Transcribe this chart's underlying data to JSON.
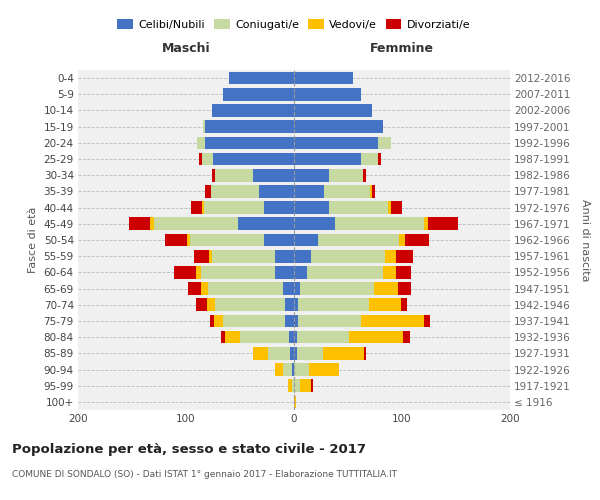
{
  "age_groups": [
    "100+",
    "95-99",
    "90-94",
    "85-89",
    "80-84",
    "75-79",
    "70-74",
    "65-69",
    "60-64",
    "55-59",
    "50-54",
    "45-49",
    "40-44",
    "35-39",
    "30-34",
    "25-29",
    "20-24",
    "15-19",
    "10-14",
    "5-9",
    "0-4"
  ],
  "birth_years": [
    "≤ 1916",
    "1917-1921",
    "1922-1926",
    "1927-1931",
    "1932-1936",
    "1937-1941",
    "1942-1946",
    "1947-1951",
    "1952-1956",
    "1957-1961",
    "1962-1966",
    "1967-1971",
    "1972-1976",
    "1977-1981",
    "1982-1986",
    "1987-1991",
    "1992-1996",
    "1997-2001",
    "2002-2006",
    "2007-2011",
    "2012-2016"
  ],
  "colors": {
    "celibi": "#4472c4",
    "coniugati": "#c5d9a0",
    "vedovi": "#ffc000",
    "divorziati": "#cc0000"
  },
  "male_celibi": [
    0,
    0,
    2,
    4,
    5,
    8,
    8,
    10,
    18,
    18,
    28,
    52,
    28,
    32,
    38,
    75,
    82,
    82,
    76,
    66,
    60
  ],
  "male_coniugati": [
    0,
    2,
    8,
    20,
    45,
    58,
    65,
    70,
    68,
    58,
    68,
    78,
    55,
    45,
    35,
    10,
    8,
    2,
    0,
    0,
    0
  ],
  "male_vedovi": [
    0,
    4,
    8,
    14,
    14,
    8,
    8,
    6,
    5,
    3,
    3,
    3,
    2,
    0,
    0,
    0,
    0,
    0,
    0,
    0,
    0
  ],
  "male_divorziati": [
    0,
    0,
    0,
    0,
    4,
    4,
    10,
    12,
    20,
    14,
    20,
    20,
    10,
    5,
    3,
    3,
    0,
    0,
    0,
    0,
    0
  ],
  "female_celibi": [
    0,
    0,
    0,
    3,
    3,
    4,
    4,
    6,
    12,
    16,
    22,
    38,
    32,
    28,
    32,
    62,
    78,
    82,
    72,
    62,
    55
  ],
  "female_coniugati": [
    0,
    6,
    14,
    24,
    48,
    58,
    65,
    68,
    70,
    68,
    75,
    82,
    55,
    42,
    32,
    16,
    12,
    0,
    0,
    0,
    0
  ],
  "female_vedovi": [
    2,
    10,
    28,
    38,
    50,
    58,
    30,
    22,
    12,
    10,
    6,
    4,
    3,
    2,
    0,
    0,
    0,
    0,
    0,
    0,
    0
  ],
  "female_divorziati": [
    0,
    2,
    0,
    2,
    6,
    6,
    6,
    12,
    14,
    16,
    22,
    28,
    10,
    3,
    3,
    3,
    0,
    0,
    0,
    0,
    0
  ],
  "title": "Popolazione per età, sesso e stato civile - 2017",
  "subtitle": "COMUNE DI SONDALO (SO) - Dati ISTAT 1° gennaio 2017 - Elaborazione TUTTITALIA.IT",
  "label_maschi": "Maschi",
  "label_femmine": "Femmine",
  "ylabel_left": "Fasce di età",
  "ylabel_right": "Anni di nascita",
  "legend_labels": [
    "Celibi/Nubili",
    "Coniugati/e",
    "Vedovi/e",
    "Divorziati/e"
  ],
  "xlim": 200,
  "bg_plot": "#f0f0f0",
  "bg_fig": "#ffffff",
  "grid_color": "#cccccc"
}
